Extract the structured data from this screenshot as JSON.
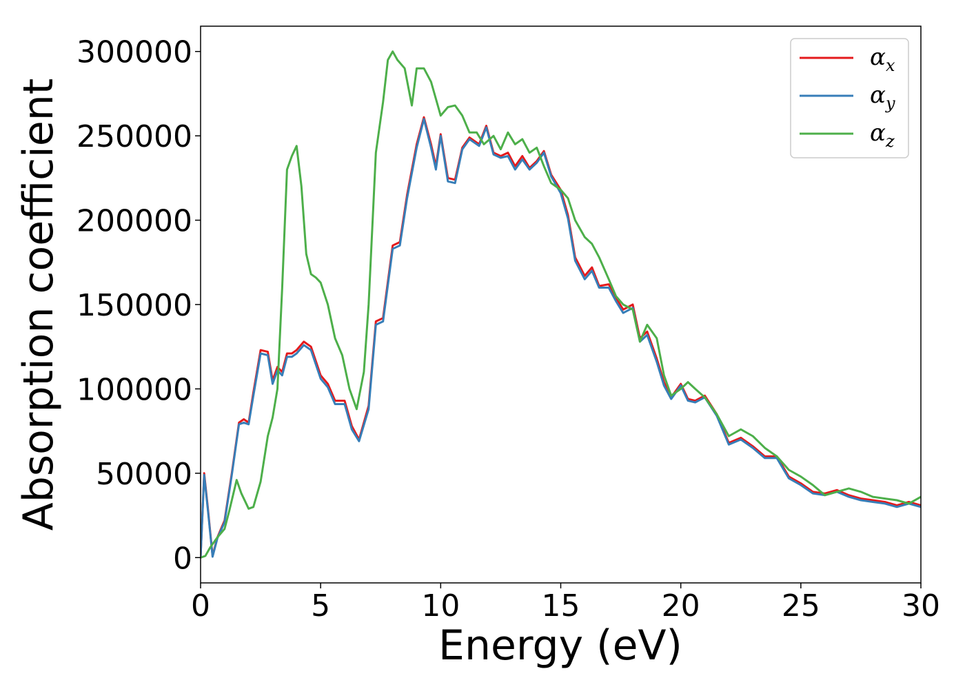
{
  "chart_data": {
    "type": "line",
    "xlabel": "Energy (eV)",
    "ylabel": "Absorption coefficient",
    "xlim": [
      0,
      30
    ],
    "ylim": [
      -15000,
      315000
    ],
    "xticks": [
      "0",
      "5",
      "10",
      "15",
      "20",
      "25",
      "30"
    ],
    "yticks": [
      "0",
      "50000",
      "100000",
      "150000",
      "200000",
      "250000",
      "300000"
    ],
    "grid": false,
    "legend_position": "top-right",
    "series": [
      {
        "name": "αx",
        "symbol": "α",
        "subscript": "x",
        "color": "#e41a1c",
        "x": [
          0,
          0.15,
          0.3,
          0.5,
          0.7,
          1.0,
          1.3,
          1.6,
          1.8,
          2.0,
          2.2,
          2.5,
          2.8,
          3.0,
          3.2,
          3.4,
          3.6,
          3.8,
          4.0,
          4.3,
          4.6,
          5.0,
          5.3,
          5.6,
          6.0,
          6.3,
          6.6,
          7.0,
          7.3,
          7.6,
          8.0,
          8.3,
          8.6,
          9.0,
          9.3,
          9.6,
          9.8,
          10.0,
          10.3,
          10.6,
          10.9,
          11.2,
          11.6,
          11.9,
          12.2,
          12.5,
          12.8,
          13.1,
          13.4,
          13.7,
          14.0,
          14.3,
          14.6,
          15.0,
          15.3,
          15.6,
          16.0,
          16.3,
          16.6,
          17.0,
          17.3,
          17.6,
          18.0,
          18.3,
          18.6,
          19.0,
          19.3,
          19.6,
          20.0,
          20.3,
          20.6,
          21.0,
          21.5,
          22.0,
          22.5,
          23.0,
          23.5,
          24.0,
          24.5,
          25.0,
          25.5,
          26.0,
          26.5,
          27.0,
          27.5,
          28.0,
          28.5,
          29.0,
          29.5,
          30.0
        ],
        "values": [
          0,
          50000,
          30000,
          1000,
          12000,
          22000,
          50000,
          80000,
          82000,
          80000,
          98000,
          123000,
          122000,
          105000,
          113000,
          110000,
          121000,
          121000,
          123000,
          128000,
          125000,
          108000,
          103000,
          93000,
          93000,
          78000,
          70000,
          90000,
          140000,
          142000,
          185000,
          187000,
          215000,
          245000,
          261000,
          245000,
          232000,
          251000,
          225000,
          224000,
          243000,
          249000,
          245000,
          256000,
          240000,
          238000,
          240000,
          232000,
          238000,
          231000,
          235000,
          241000,
          227000,
          218000,
          203000,
          178000,
          167000,
          172000,
          161000,
          162000,
          154000,
          147000,
          150000,
          130000,
          134000,
          118000,
          104000,
          95000,
          103000,
          94000,
          93000,
          96000,
          85000,
          68000,
          71000,
          66000,
          60000,
          60000,
          48000,
          44000,
          39000,
          38000,
          40000,
          37000,
          35000,
          34000,
          33000,
          31000,
          33000,
          31000
        ]
      },
      {
        "name": "αy",
        "symbol": "α",
        "subscript": "y",
        "color": "#377eb8",
        "x": [
          0,
          0.15,
          0.3,
          0.5,
          0.7,
          1.0,
          1.3,
          1.6,
          1.8,
          2.0,
          2.2,
          2.5,
          2.8,
          3.0,
          3.2,
          3.4,
          3.6,
          3.8,
          4.0,
          4.3,
          4.6,
          5.0,
          5.3,
          5.6,
          6.0,
          6.3,
          6.6,
          7.0,
          7.3,
          7.6,
          8.0,
          8.3,
          8.6,
          9.0,
          9.3,
          9.6,
          9.8,
          10.0,
          10.3,
          10.6,
          10.9,
          11.2,
          11.6,
          11.9,
          12.2,
          12.5,
          12.8,
          13.1,
          13.4,
          13.7,
          14.0,
          14.3,
          14.6,
          15.0,
          15.3,
          15.6,
          16.0,
          16.3,
          16.6,
          17.0,
          17.3,
          17.6,
          18.0,
          18.3,
          18.6,
          19.0,
          19.3,
          19.6,
          20.0,
          20.3,
          20.6,
          21.0,
          21.5,
          22.0,
          22.5,
          23.0,
          23.5,
          24.0,
          24.5,
          25.0,
          25.5,
          26.0,
          26.5,
          27.0,
          27.5,
          28.0,
          28.5,
          29.0,
          29.5,
          30.0
        ],
        "values": [
          0,
          49000,
          29000,
          500,
          11500,
          21000,
          49000,
          79000,
          80000,
          79000,
          96000,
          121000,
          120000,
          103000,
          111000,
          108000,
          119000,
          119000,
          121000,
          126000,
          123000,
          106000,
          101000,
          91000,
          91000,
          76000,
          69000,
          88000,
          138000,
          140000,
          183000,
          185000,
          213000,
          243000,
          260000,
          243000,
          230000,
          250000,
          223000,
          222000,
          242000,
          248000,
          244000,
          255000,
          239000,
          237000,
          238000,
          230000,
          236000,
          230000,
          234000,
          240000,
          226000,
          216000,
          201000,
          176000,
          165000,
          170000,
          160000,
          160000,
          152000,
          145000,
          148000,
          128000,
          132000,
          116000,
          102000,
          94000,
          102000,
          93000,
          92000,
          95000,
          84000,
          67000,
          70000,
          65000,
          59000,
          59000,
          47000,
          43000,
          38000,
          37000,
          39000,
          36000,
          34000,
          33000,
          32000,
          30000,
          32000,
          30000
        ]
      },
      {
        "name": "αz",
        "symbol": "α",
        "subscript": "z",
        "color": "#4daf4a",
        "x": [
          0,
          0.2,
          0.4,
          0.7,
          1.0,
          1.2,
          1.5,
          1.7,
          2.0,
          2.2,
          2.5,
          2.8,
          3.0,
          3.2,
          3.4,
          3.6,
          3.8,
          4.0,
          4.2,
          4.4,
          4.6,
          4.8,
          5.0,
          5.3,
          5.6,
          5.9,
          6.2,
          6.5,
          6.8,
          7.0,
          7.3,
          7.6,
          7.8,
          8.0,
          8.2,
          8.5,
          8.8,
          9.0,
          9.3,
          9.6,
          10.0,
          10.3,
          10.6,
          10.9,
          11.2,
          11.5,
          11.8,
          12.2,
          12.5,
          12.8,
          13.1,
          13.4,
          13.7,
          14.0,
          14.3,
          14.6,
          15.0,
          15.3,
          15.6,
          16.0,
          16.3,
          16.6,
          17.0,
          17.3,
          17.6,
          18.0,
          18.3,
          18.6,
          19.0,
          19.3,
          19.6,
          20.0,
          20.3,
          20.6,
          21.0,
          21.5,
          22.0,
          22.5,
          23.0,
          23.5,
          24.0,
          24.5,
          25.0,
          25.5,
          26.0,
          26.5,
          27.0,
          27.5,
          28.0,
          28.5,
          29.0,
          29.5,
          30.0
        ],
        "values": [
          0,
          1000,
          6000,
          12000,
          17000,
          28000,
          46000,
          38000,
          29000,
          30000,
          45000,
          72000,
          83000,
          100000,
          160000,
          230000,
          238000,
          244000,
          220000,
          180000,
          168000,
          166000,
          163000,
          150000,
          130000,
          120000,
          100000,
          88000,
          110000,
          150000,
          240000,
          270000,
          295000,
          300000,
          295000,
          290000,
          268000,
          290000,
          290000,
          282000,
          262000,
          267000,
          268000,
          262000,
          252000,
          252000,
          245000,
          250000,
          242000,
          252000,
          245000,
          248000,
          240000,
          243000,
          232000,
          222000,
          218000,
          213000,
          200000,
          190000,
          186000,
          178000,
          165000,
          155000,
          150000,
          147000,
          128000,
          138000,
          130000,
          108000,
          96000,
          100000,
          104000,
          100000,
          95000,
          85000,
          72000,
          76000,
          72000,
          65000,
          60000,
          52000,
          48000,
          43000,
          37000,
          39000,
          41000,
          39000,
          36000,
          35000,
          34000,
          32000,
          36000
        ]
      }
    ]
  }
}
